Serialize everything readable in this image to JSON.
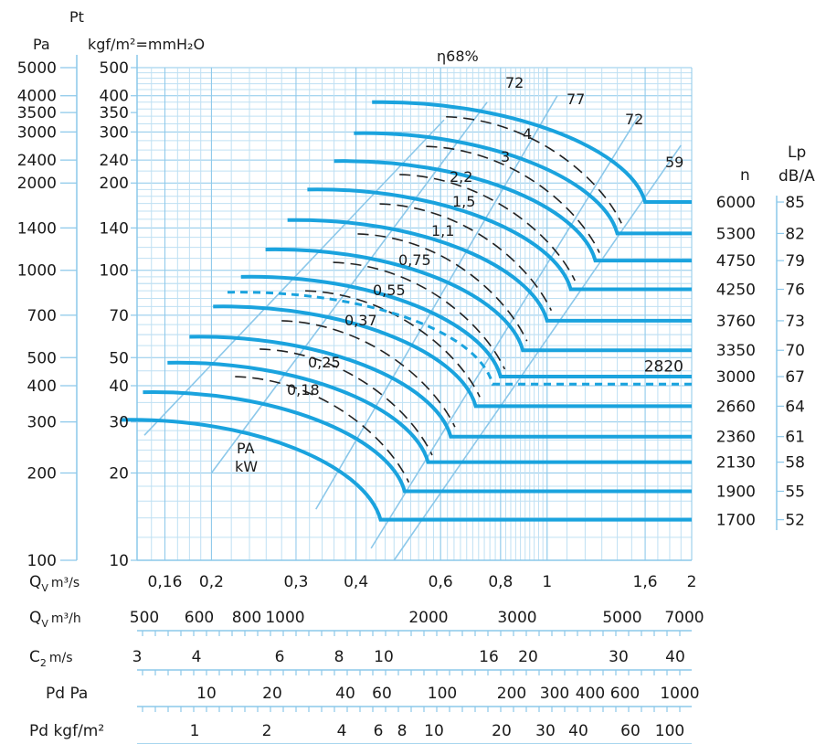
{
  "chart_data": {
    "type": "line",
    "title": "",
    "y_axis": {
      "label": "Pt",
      "unit_pa": "Pa",
      "unit_kgf": "kgf/m²=mmH₂O",
      "pa_ticks": [
        "5000",
        "4000",
        "3500",
        "3000",
        "2400",
        "2000",
        "1400",
        "1000",
        "700",
        "500",
        "400",
        "300",
        "200",
        "100"
      ],
      "kgf_ticks": [
        "500",
        "400",
        "350",
        "300",
        "240",
        "200",
        "140",
        "100",
        "70",
        "50",
        "40",
        "30",
        "20",
        "10"
      ],
      "range_kgf": [
        10,
        500
      ],
      "scale": "log"
    },
    "x_axes": [
      {
        "label": "Q",
        "sub": "V",
        "unit": "m³/s",
        "ticks": [
          "0,16",
          "0,2",
          "0,3",
          "0,4",
          "0,6",
          "0,8",
          "1",
          "1,6",
          "2"
        ],
        "range": [
          0.14,
          2.0
        ],
        "scale": "log"
      },
      {
        "label": "Q",
        "sub": "V",
        "unit": "m³/h",
        "ticks": [
          "500",
          "600",
          "800",
          "1000",
          "2000",
          "3000",
          "5000",
          "7000"
        ]
      },
      {
        "label": "C",
        "sub": "2",
        "unit": "m/s",
        "ticks": [
          "3",
          "4",
          "6",
          "8",
          "10",
          "16",
          "20",
          "30",
          "40"
        ]
      },
      {
        "label": "Pd Pa",
        "ticks": [
          "10",
          "20",
          "40",
          "60",
          "100",
          "200",
          "300",
          "400",
          "600",
          "1000"
        ]
      },
      {
        "label": "Pd kgf/m²",
        "ticks": [
          "1",
          "2",
          "4",
          "6",
          "8",
          "10",
          "20",
          "30",
          "40",
          "60",
          "100"
        ]
      }
    ],
    "speed_header": "n",
    "noise_header": [
      "Lp",
      "dB/A"
    ],
    "speed_curves": [
      {
        "n": "6000",
        "lp": "85",
        "p_start": 380,
        "p_end": 172,
        "q_peak": 0.6,
        "q_end": 1.6
      },
      {
        "n": "5300",
        "lp": "82",
        "p_start": 297,
        "p_end": 134,
        "q_peak": 0.55,
        "q_end": 1.4
      },
      {
        "n": "4750",
        "lp": "79",
        "p_start": 238,
        "p_end": 108,
        "q_peak": 0.5,
        "q_end": 1.26
      },
      {
        "n": "4250",
        "lp": "76",
        "p_start": 190,
        "p_end": 86,
        "q_peak": 0.44,
        "q_end": 1.12
      },
      {
        "n": "3760",
        "lp": "73",
        "p_start": 149,
        "p_end": 67,
        "q_peak": 0.4,
        "q_end": 1.0
      },
      {
        "n": "3350",
        "lp": "70",
        "p_start": 118,
        "p_end": 53,
        "q_peak": 0.36,
        "q_end": 0.89
      },
      {
        "n": "3000",
        "lp": "67",
        "p_start": 95,
        "p_end": 43,
        "q_peak": 0.32,
        "q_end": 0.8
      },
      {
        "n": "2660",
        "lp": "64",
        "p_start": 75,
        "p_end": 34,
        "q_peak": 0.28,
        "q_end": 0.71
      },
      {
        "n": "2360",
        "lp": "61",
        "p_start": 59,
        "p_end": 26.7,
        "q_peak": 0.25,
        "q_end": 0.63
      },
      {
        "n": "2130",
        "lp": "58",
        "p_start": 48,
        "p_end": 21.8,
        "q_peak": 0.225,
        "q_end": 0.565
      },
      {
        "n": "1900",
        "lp": "55",
        "p_start": 38,
        "p_end": 17.3,
        "q_peak": 0.2,
        "q_end": 0.505
      },
      {
        "n": "1700",
        "lp": "52",
        "p_start": 30.5,
        "p_end": 13.8,
        "q_peak": 0.18,
        "q_end": 0.45
      }
    ],
    "dashed_speed": {
      "n": "2820",
      "p_start": 84,
      "p_end": 40.5,
      "q_peak": 0.3,
      "q_end": 0.77,
      "q_tail": 2.0
    },
    "efficiency_label": "η",
    "efficiency_lines": [
      "68%",
      "72",
      "77",
      "72",
      "59"
    ],
    "power_header": [
      "PA",
      "kW"
    ],
    "power_lines": [
      "0,18",
      "0,25",
      "0,37",
      "0,55",
      "0,75",
      "1,1",
      "1,5",
      "2,2",
      "3",
      "4"
    ]
  }
}
